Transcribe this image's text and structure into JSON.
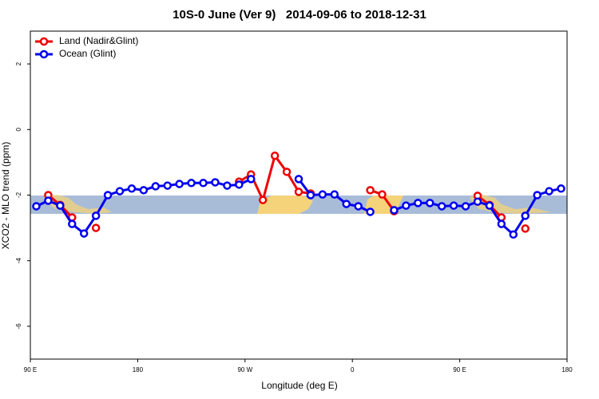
{
  "chart_data": {
    "type": "line",
    "title": "10S-0 June (Ver 9)   2014-09-06 to 2018-12-31",
    "xlabel": "Longitude (deg E)",
    "ylabel": "XCO2 - MLO trend (ppm)",
    "xlim": [
      90,
      540
    ],
    "xticks": [
      {
        "value": 90,
        "label": "90 E"
      },
      {
        "value": 180,
        "label": "180"
      },
      {
        "value": 270,
        "label": "90 W"
      },
      {
        "value": 360,
        "label": "0"
      },
      {
        "value": 450,
        "label": "90 E"
      },
      {
        "value": 540,
        "label": "180"
      }
    ],
    "ylim": [
      -7,
      3
    ],
    "yticks": [
      -6,
      -4,
      -2,
      0,
      2
    ],
    "grid": false,
    "legend": "top-left",
    "series": [
      {
        "name": "Land (Nadir&Glint)",
        "color": "#ee0000",
        "x": [
          105,
          115,
          125,
          135,
          145,
          255,
          265,
          275,
          285,
          295,
          305,
          315,
          325,
          335,
          375,
          385,
          395,
          405,
          465,
          475,
          485,
          495,
          505
        ],
        "values": [
          -2.0,
          -2.3,
          -2.68,
          null,
          -3.0,
          null,
          -1.59,
          -1.37,
          -2.15,
          -0.8,
          -1.29,
          -1.9,
          -1.95,
          null,
          -1.85,
          -1.98,
          -2.49,
          null,
          -2.02,
          -2.3,
          -2.68,
          null,
          -3.02
        ]
      },
      {
        "name": "Ocean (Glint)",
        "color": "#0000ee",
        "x": [
          95,
          105,
          115,
          125,
          135,
          145,
          155,
          165,
          175,
          185,
          195,
          205,
          215,
          225,
          235,
          245,
          255,
          265,
          275,
          285,
          295,
          305,
          315,
          325,
          335,
          345,
          355,
          365,
          375,
          385,
          395,
          405,
          415,
          425,
          435,
          445,
          455,
          465,
          475,
          485,
          495,
          505,
          515,
          525,
          535
        ],
        "values": [
          -2.34,
          -2.17,
          -2.32,
          -2.88,
          -3.17,
          -2.63,
          -2.0,
          -1.88,
          -1.8,
          -1.85,
          -1.73,
          -1.71,
          -1.66,
          -1.63,
          -1.63,
          -1.61,
          -1.71,
          -1.68,
          -1.51,
          null,
          null,
          null,
          -1.51,
          -2.0,
          -1.98,
          -1.98,
          -2.27,
          -2.34,
          -2.51,
          null,
          -2.46,
          -2.32,
          -2.24,
          -2.24,
          -2.34,
          -2.32,
          -2.34,
          -2.2,
          -2.32,
          -2.88,
          -3.2,
          -2.63,
          -2.0,
          -1.88,
          -1.8
        ]
      }
    ]
  }
}
